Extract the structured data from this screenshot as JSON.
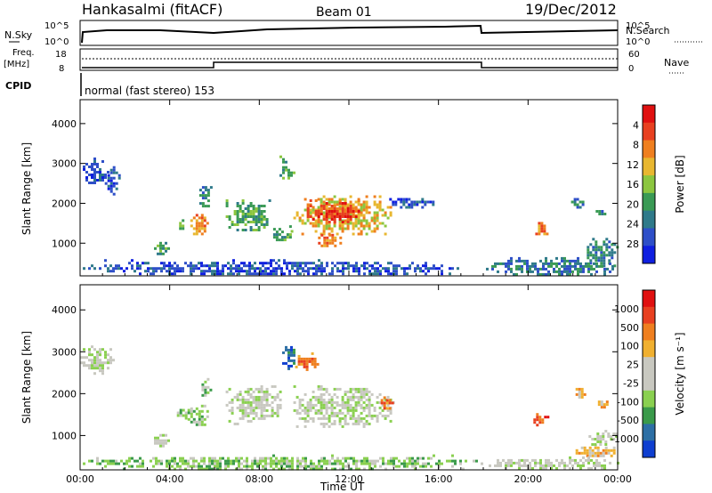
{
  "header": {
    "station": "Hankasalmi (fitACF)",
    "beam": "Beam 01",
    "date": "19/Dec/2012"
  },
  "strips": {
    "nsky_label": "N.Sky",
    "nsky_ticks": [
      "10^5",
      "10^0"
    ],
    "nsearch_label": "N.Search",
    "nsearch_ticks": [
      "10^5",
      "10^0"
    ],
    "freq_label": "Freq.",
    "freq_unit": "[MHz]",
    "freq_ticks": [
      "18",
      "8"
    ],
    "nave_label": "Nave",
    "nave_ticks": [
      "60",
      "0"
    ],
    "cpid_label": "CPID",
    "cpid_text": "normal (fast stereo) 153"
  },
  "chart_data": [
    {
      "type": "heatmap",
      "panel": "power",
      "xlabel": "",
      "ylabel": "Slant Range [km]",
      "x_ticks": [
        "00:00",
        "04:00",
        "08:00",
        "12:00",
        "16:00",
        "20:00",
        "00:00"
      ],
      "y_ticks": [
        1000,
        2000,
        3000,
        4000
      ],
      "xlim": [
        0,
        24
      ],
      "ylim": [
        180,
        4600
      ],
      "colorbar": {
        "label": "Power [dB]",
        "ticks": [
          "4",
          "8",
          "12",
          "16",
          "20",
          "24",
          "28"
        ],
        "colors": [
          "#0f1fe0",
          "#2e4fc8",
          "#2f7a8a",
          "#3a9a55",
          "#8cc63f",
          "#e8b730",
          "#ef7f1f",
          "#e84020",
          "#e01010"
        ]
      },
      "regions": [
        {
          "t0": 0.0,
          "t1": 1.2,
          "r0": 2500,
          "r1": 3150,
          "level": 1
        },
        {
          "t0": 1.1,
          "t1": 1.7,
          "r0": 2200,
          "r1": 3000,
          "level": 1
        },
        {
          "t0": 3.3,
          "t1": 3.9,
          "r0": 700,
          "r1": 1100,
          "level": 3
        },
        {
          "t0": 4.3,
          "t1": 4.7,
          "r0": 1350,
          "r1": 1600,
          "level": 4
        },
        {
          "t0": 4.8,
          "t1": 5.7,
          "r0": 1200,
          "r1": 1800,
          "level": 6
        },
        {
          "t0": 5.2,
          "t1": 5.8,
          "r0": 1900,
          "r1": 2500,
          "level": 2
        },
        {
          "t0": 6.5,
          "t1": 8.5,
          "r0": 1300,
          "r1": 2100,
          "level": 3
        },
        {
          "t0": 8.5,
          "t1": 9.4,
          "r0": 1050,
          "r1": 1450,
          "level": 3
        },
        {
          "t0": 8.9,
          "t1": 9.5,
          "r0": 2600,
          "r1": 3200,
          "level": 3
        },
        {
          "t0": 9.4,
          "t1": 13.9,
          "r0": 1200,
          "r1": 2200,
          "level": 5
        },
        {
          "t0": 10.0,
          "t1": 12.5,
          "r0": 1500,
          "r1": 2100,
          "level": 7
        },
        {
          "t0": 10.5,
          "t1": 11.8,
          "r0": 900,
          "r1": 1300,
          "level": 6
        },
        {
          "t0": 13.8,
          "t1": 15.8,
          "r0": 1900,
          "r1": 2200,
          "level": 1
        },
        {
          "t0": 20.2,
          "t1": 20.9,
          "r0": 1200,
          "r1": 1600,
          "level": 6
        },
        {
          "t0": 21.8,
          "t1": 22.5,
          "r0": 1900,
          "r1": 2200,
          "level": 2
        },
        {
          "t0": 22.9,
          "t1": 23.6,
          "r0": 1700,
          "r1": 1900,
          "level": 2
        },
        {
          "t0": 22.5,
          "t1": 24.0,
          "r0": 400,
          "r1": 1200,
          "level": 2
        },
        {
          "t0": 0.0,
          "t1": 17.0,
          "r0": 200,
          "r1": 600,
          "level": 1
        },
        {
          "t0": 18.0,
          "t1": 24.0,
          "r0": 200,
          "r1": 650,
          "level": 2
        }
      ]
    },
    {
      "type": "heatmap",
      "panel": "velocity",
      "xlabel": "Time UT",
      "ylabel": "Slant Range [km]",
      "x_ticks": [
        "00:00",
        "04:00",
        "08:00",
        "12:00",
        "16:00",
        "20:00",
        "00:00"
      ],
      "y_ticks": [
        1000,
        2000,
        3000,
        4000
      ],
      "xlim": [
        0,
        24
      ],
      "ylim": [
        180,
        4600
      ],
      "colorbar": {
        "label": "Velocity [m s⁻¹]",
        "ticks": [
          "1000",
          "500",
          "100",
          "25",
          "-25",
          "-100",
          "-500",
          "-1000"
        ],
        "colors": [
          "#0f3fd0",
          "#2d6fa5",
          "#3a9a4a",
          "#8ad050",
          "#c8c8c0",
          "#c8c8c0",
          "#f0b030",
          "#ef7f1f",
          "#e84020",
          "#e01010"
        ]
      },
      "regions": [
        {
          "t0": 0.0,
          "t1": 1.6,
          "r0": 2500,
          "r1": 3150,
          "level": 4
        },
        {
          "t0": 3.3,
          "t1": 3.9,
          "r0": 700,
          "r1": 1100,
          "level": 4
        },
        {
          "t0": 4.2,
          "t1": 4.9,
          "r0": 1400,
          "r1": 1700,
          "level": 3
        },
        {
          "t0": 4.8,
          "t1": 5.7,
          "r0": 1200,
          "r1": 1800,
          "level": 3
        },
        {
          "t0": 5.3,
          "t1": 5.8,
          "r0": 1900,
          "r1": 2500,
          "level": 3
        },
        {
          "t0": 6.5,
          "t1": 9.0,
          "r0": 1300,
          "r1": 2200,
          "level": 4
        },
        {
          "t0": 8.9,
          "t1": 9.6,
          "r0": 2600,
          "r1": 3200,
          "level": 1
        },
        {
          "t0": 9.6,
          "t1": 10.6,
          "r0": 2600,
          "r1": 3050,
          "level": 7
        },
        {
          "t0": 9.4,
          "t1": 14.0,
          "r0": 1200,
          "r1": 2200,
          "level": 4
        },
        {
          "t0": 13.3,
          "t1": 13.9,
          "r0": 1600,
          "r1": 2000,
          "level": 7
        },
        {
          "t0": 20.0,
          "t1": 20.9,
          "r0": 1200,
          "r1": 1600,
          "level": 8
        },
        {
          "t0": 22.0,
          "t1": 22.5,
          "r0": 1900,
          "r1": 2200,
          "level": 6
        },
        {
          "t0": 23.0,
          "t1": 23.6,
          "r0": 1700,
          "r1": 1900,
          "level": 6
        },
        {
          "t0": 22.0,
          "t1": 24.0,
          "r0": 500,
          "r1": 800,
          "level": 6
        },
        {
          "t0": 22.7,
          "t1": 24.0,
          "r0": 800,
          "r1": 1200,
          "level": 4
        },
        {
          "t0": 0.0,
          "t1": 18.0,
          "r0": 200,
          "r1": 550,
          "level": 3
        },
        {
          "t0": 18.0,
          "t1": 24.0,
          "r0": 200,
          "r1": 500,
          "level": 4
        }
      ]
    }
  ]
}
